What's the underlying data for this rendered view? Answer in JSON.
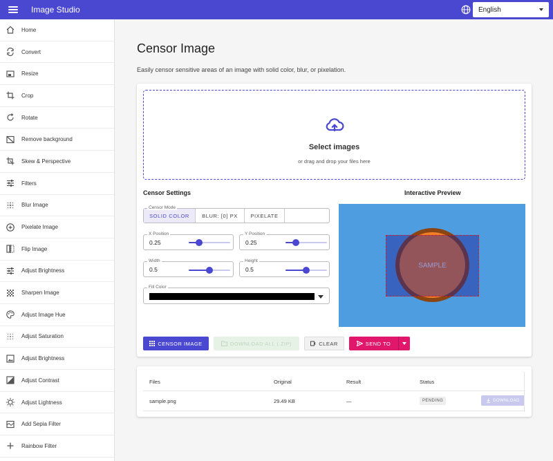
{
  "app": {
    "title": "Image Studio"
  },
  "language": {
    "selected": "English"
  },
  "sidebar": {
    "items": [
      {
        "label": "Home",
        "icon": "home-icon"
      },
      {
        "label": "Convert",
        "icon": "convert-icon"
      },
      {
        "label": "Resize",
        "icon": "resize-icon"
      },
      {
        "label": "Crop",
        "icon": "crop-icon"
      },
      {
        "label": "Rotate",
        "icon": "rotate-icon"
      },
      {
        "label": "Remove background",
        "icon": "remove-background-icon"
      },
      {
        "label": "Skew & Perspective",
        "icon": "skew-icon"
      },
      {
        "label": "Filters",
        "icon": "filters-icon"
      },
      {
        "label": "Blur Image",
        "icon": "blur-icon"
      },
      {
        "label": "Pixelate Image",
        "icon": "pixelate-icon"
      },
      {
        "label": "Flip Image",
        "icon": "flip-icon"
      },
      {
        "label": "Adjust Brightness",
        "icon": "brightness-icon"
      },
      {
        "label": "Sharpen Image",
        "icon": "sharpen-icon"
      },
      {
        "label": "Adjust Image Hue",
        "icon": "hue-icon"
      },
      {
        "label": "Adjust Saturation",
        "icon": "saturation-icon"
      },
      {
        "label": "Adjust Brightness",
        "icon": "brightness-image-icon"
      },
      {
        "label": "Adjust Contrast",
        "icon": "contrast-icon"
      },
      {
        "label": "Adjust Lightness",
        "icon": "lightness-icon"
      },
      {
        "label": "Add Sepia Filter",
        "icon": "sepia-icon"
      },
      {
        "label": "Rainbow Filter",
        "icon": "rainbow-icon"
      }
    ]
  },
  "page": {
    "title": "Censor Image",
    "description": "Easily censor sensitive areas of an image with solid color, blur, or pixelation."
  },
  "dropzone": {
    "title": "Select images",
    "subtitle": "or drag and drop your files here"
  },
  "settings": {
    "title": "Censor Settings",
    "mode": {
      "legend": "Censor Mode",
      "options": [
        "SOLID COLOR",
        "BLUR: [0] PX",
        "PIXELATE"
      ],
      "selected": "SOLID COLOR"
    },
    "x_position": {
      "label": "X Position",
      "value": "0.25",
      "level": 0.25
    },
    "y_position": {
      "label": "Y Position",
      "value": "0.25",
      "level": 0.25
    },
    "width": {
      "label": "Width",
      "value": "0.5",
      "level": 0.5
    },
    "height": {
      "label": "Height",
      "value": "0.5",
      "level": 0.5
    },
    "fill_color": {
      "label": "Fill Color",
      "value": "#000000"
    }
  },
  "preview": {
    "title": "Interactive Preview",
    "sample_label": "SAMPLE",
    "background": "#4d9de0",
    "circle_color": "#f28029",
    "circle_border": "#8b4513"
  },
  "actions": {
    "censor": "CENSOR IMAGE",
    "download_all": "DOWNLOAD ALL (.ZIP)",
    "clear": "CLEAR",
    "send_to": "SEND TO"
  },
  "files_table": {
    "headers": {
      "files": "Files",
      "original": "Original",
      "result": "Result",
      "status": "Status"
    },
    "rows": [
      {
        "name": "sample.png",
        "original": "29.49 KB",
        "result": "—",
        "status": "PENDING",
        "action": "DOWNLOAD"
      }
    ]
  },
  "colors": {
    "accent": "#4a47d1",
    "send": "#e0176b"
  }
}
